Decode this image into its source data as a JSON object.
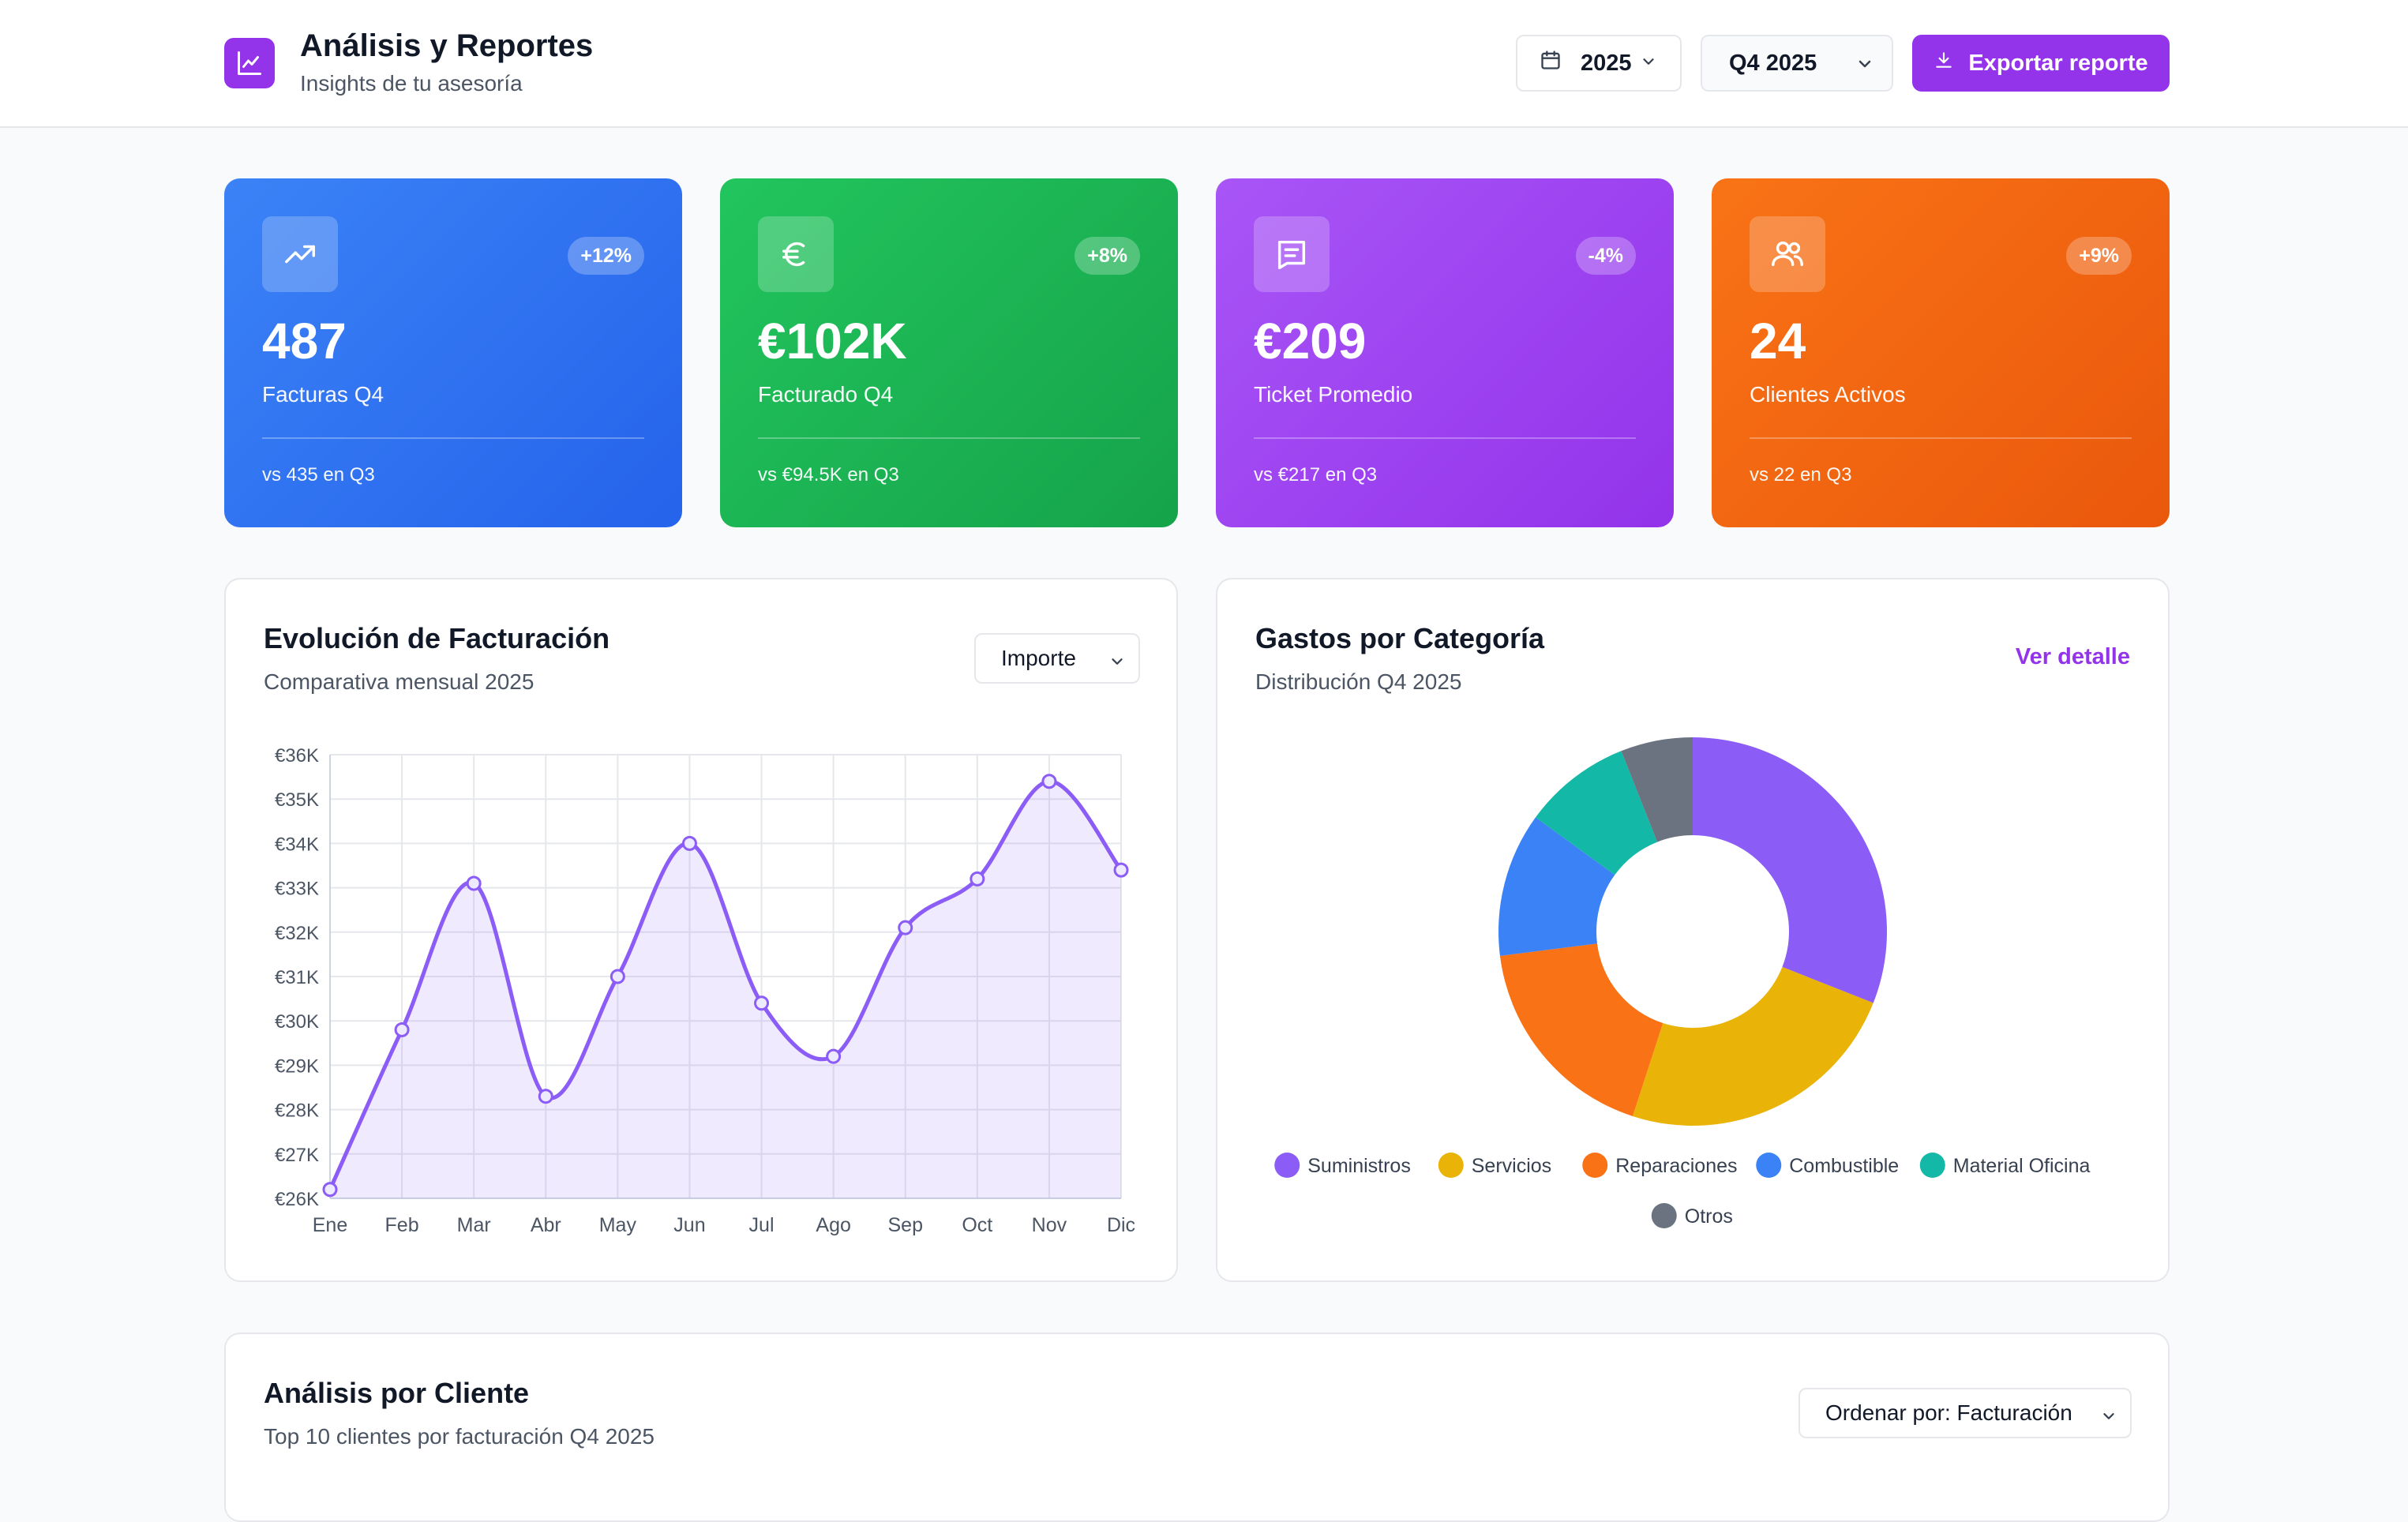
{
  "header": {
    "title": "Análisis y Reportes",
    "subtitle": "Insights de tu asesoría",
    "year": "2025",
    "quarter": "Q4 2025",
    "export_label": "Exportar reporte"
  },
  "kpis": [
    {
      "value": "487",
      "label": "Facturas Q4",
      "change": "+12%",
      "compare": "vs 435 en Q3",
      "icon": "trending-up-icon",
      "color": "#3b82f6"
    },
    {
      "value": "€102K",
      "label": "Facturado Q4",
      "change": "+8%",
      "compare": "vs €94.5K en Q3",
      "icon": "euro-icon",
      "color": "#22c55e"
    },
    {
      "value": "€209",
      "label": "Ticket Promedio",
      "change": "-4%",
      "compare": "vs €217 en Q3",
      "icon": "receipt-icon",
      "color": "#a855f7"
    },
    {
      "value": "24",
      "label": "Clientes Activos",
      "change": "+9%",
      "compare": "vs 22 en Q3",
      "icon": "users-icon",
      "color": "#f97316"
    }
  ],
  "billing": {
    "title": "Evolución de Facturación",
    "subtitle": "Comparativa mensual 2025",
    "metric": "Importe"
  },
  "expenses": {
    "title": "Gastos por Categoría",
    "subtitle": "Distribución Q4 2025",
    "link": "Ver detalle"
  },
  "clients": {
    "title": "Análisis por Cliente",
    "subtitle": "Top 10 clientes por facturación Q4 2025",
    "sort": "Ordenar por: Facturación"
  },
  "chart_data": [
    {
      "type": "line",
      "x": [
        "Ene",
        "Feb",
        "Mar",
        "Abr",
        "May",
        "Jun",
        "Jul",
        "Ago",
        "Sep",
        "Oct",
        "Nov",
        "Dic"
      ],
      "series": [
        {
          "values": [
            26200,
            29800,
            33100,
            28300,
            31000,
            34000,
            30400,
            29200,
            32100,
            33200,
            35400,
            33400
          ],
          "color": "#8b5cf6"
        }
      ],
      "y_ticks": [
        "€26K",
        "€27K",
        "€28K",
        "€29K",
        "€30K",
        "€31K",
        "€32K",
        "€33K",
        "€34K",
        "€35K",
        "€36K"
      ],
      "ylim": [
        26000,
        36000
      ],
      "grid": true,
      "area_fill": true
    },
    {
      "type": "pie",
      "donut": true,
      "categories": [
        "Suministros",
        "Servicios",
        "Reparaciones",
        "Combustible",
        "Material Oficina",
        "Otros"
      ],
      "values": [
        31,
        24,
        18,
        12,
        9,
        6
      ],
      "colors": [
        "#8b5cf6",
        "#eab308",
        "#f97316",
        "#3b82f6",
        "#14b8a6",
        "#6b7280"
      ],
      "legend": "bottom"
    }
  ]
}
